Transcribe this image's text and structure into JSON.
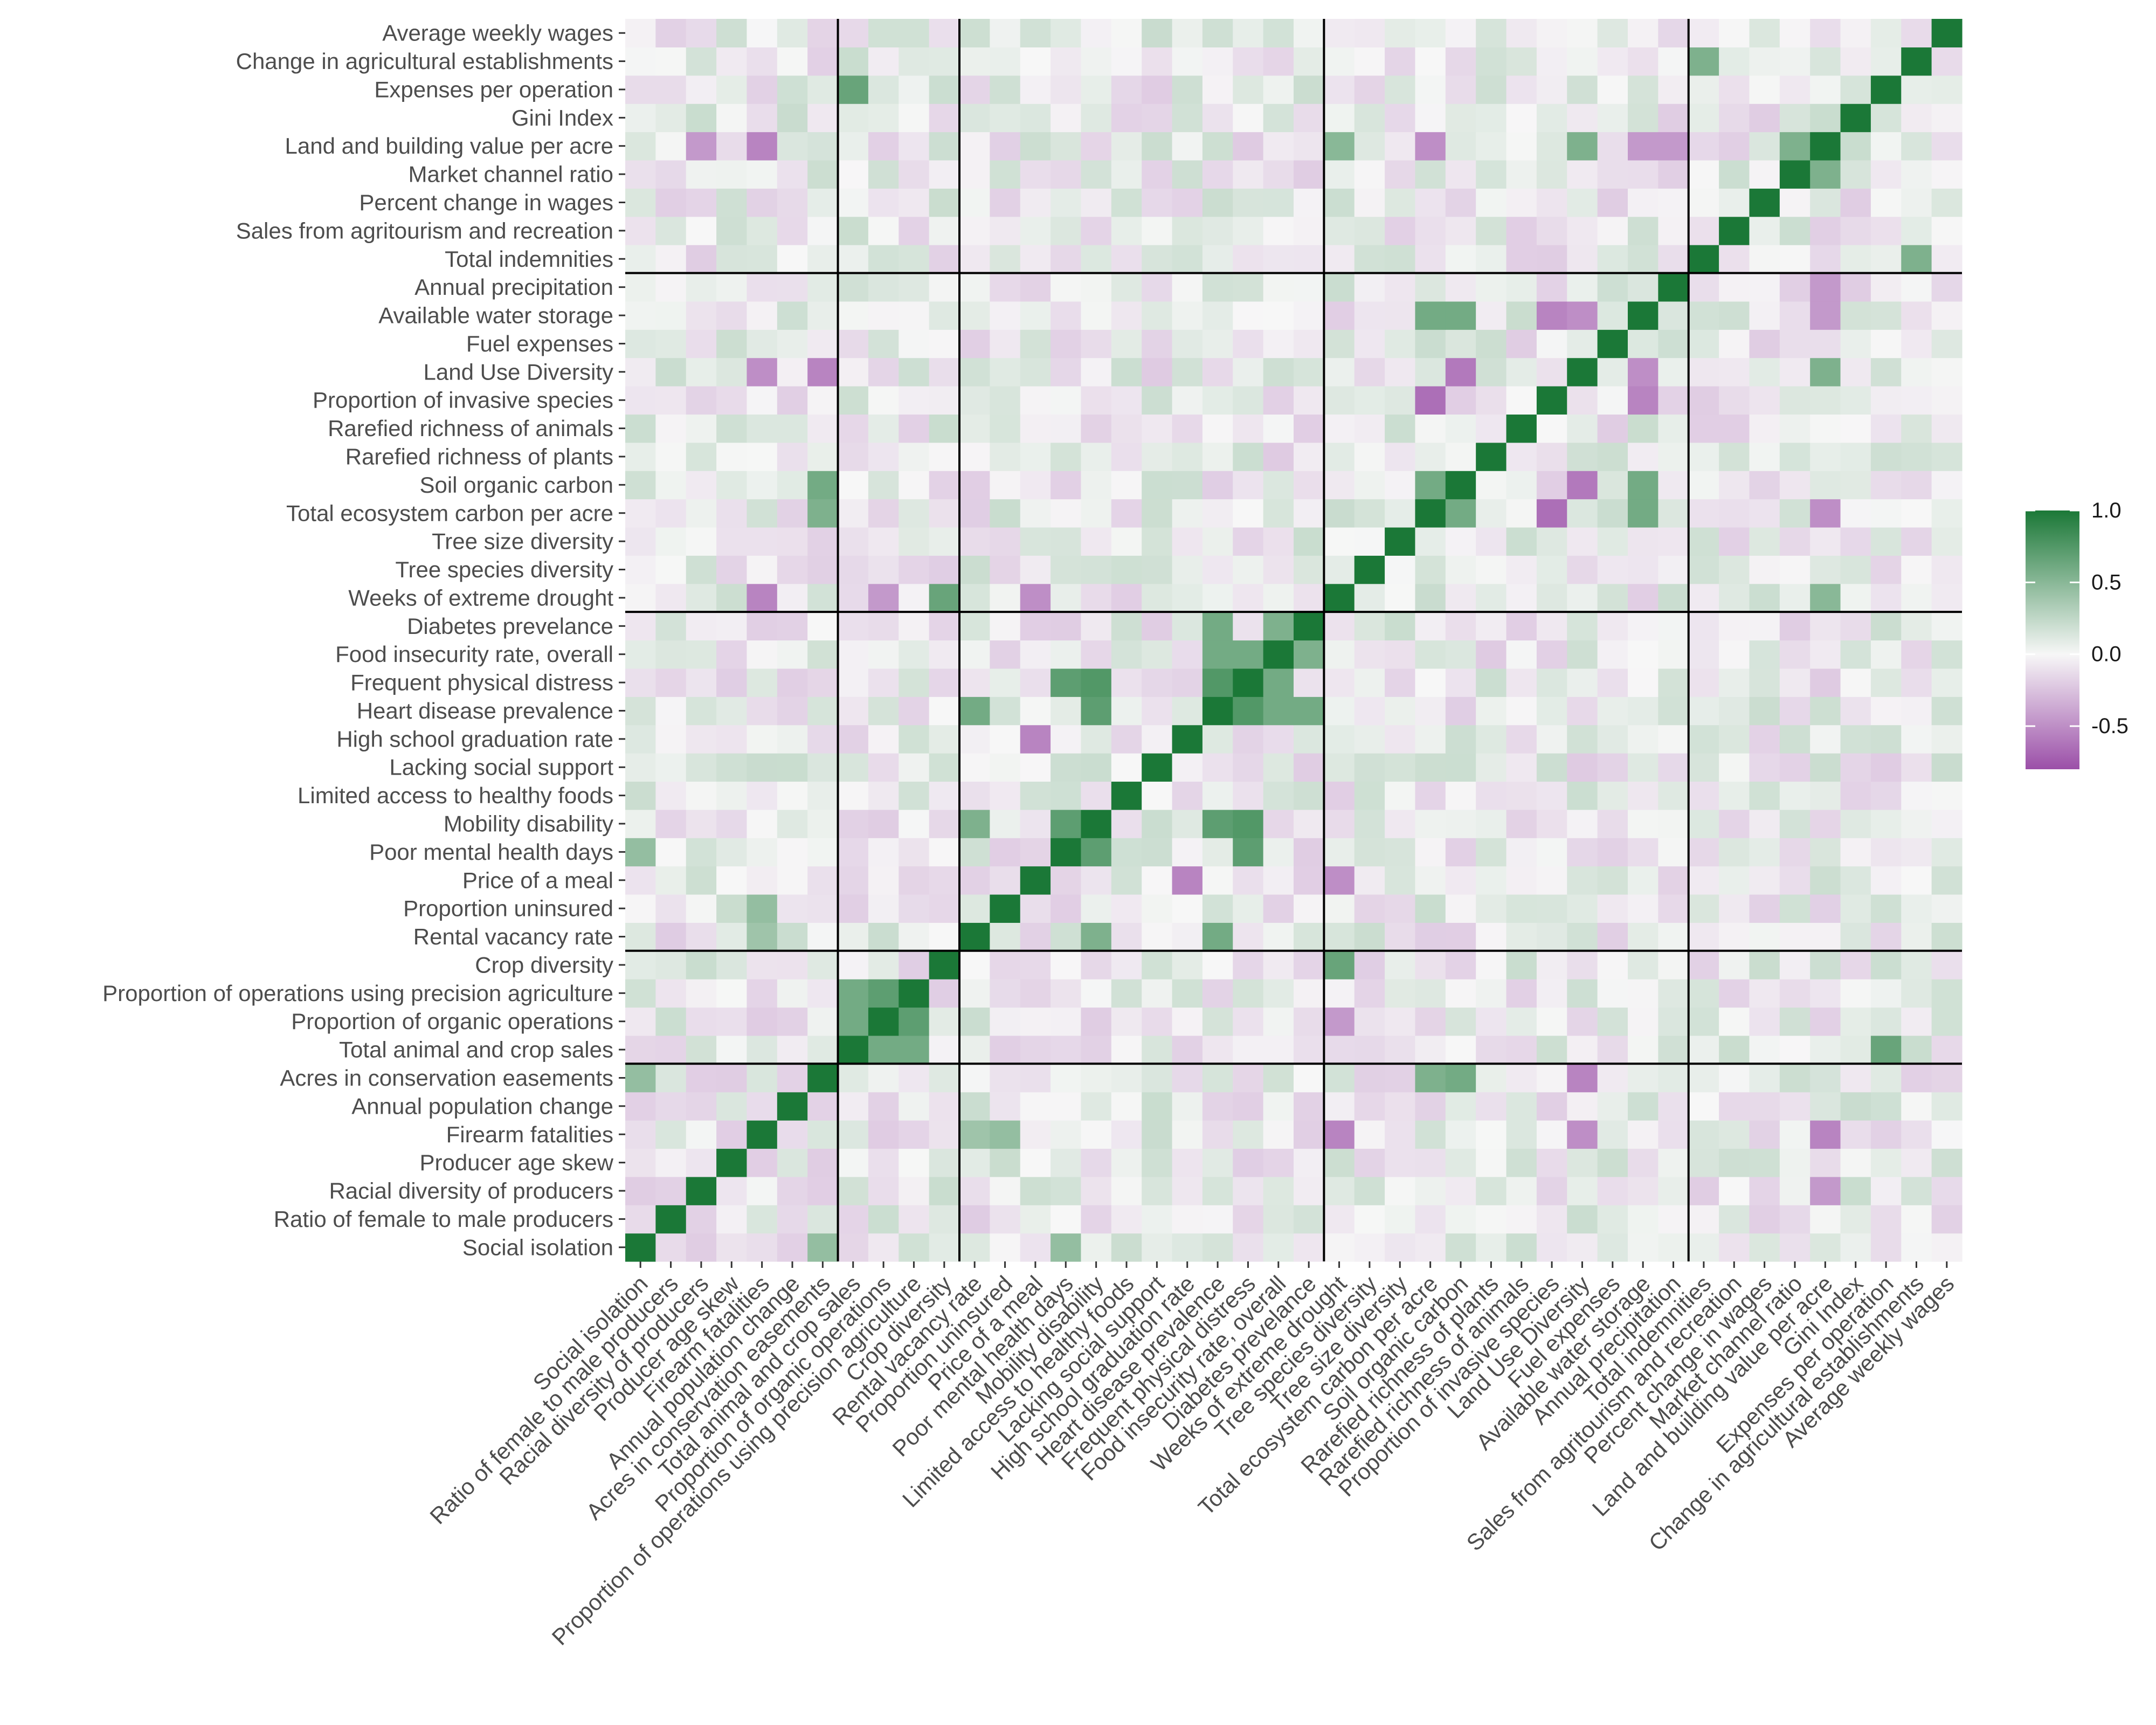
{
  "chart_data": {
    "type": "heatmap",
    "title": "",
    "xlabel": "",
    "ylabel": "",
    "variables": [
      "Social isolation",
      "Ratio of female to male producers",
      "Racial diversity of producers",
      "Producer age skew",
      "Firearm fatalities",
      "Annual population change",
      "Acres in conservation easements",
      "Total animal and crop sales",
      "Proportion of organic operations",
      "Proportion of operations using precision agriculture",
      "Crop diversity",
      "Rental vacancy rate",
      "Proportion uninsured",
      "Price of a meal",
      "Poor mental health days",
      "Mobility disability",
      "Limited access to healthy foods",
      "Lacking social support",
      "High school graduation rate",
      "Heart disease prevalence",
      "Frequent physical distress",
      "Food insecurity rate, overall",
      "Diabetes prevelance",
      "Weeks of extreme drought",
      "Tree species diversity",
      "Tree size diversity",
      "Total ecosystem carbon per acre",
      "Soil organic carbon",
      "Rarefied richness of plants",
      "Rarefied richness of animals",
      "Proportion of invasive species",
      "Land Use Diversity",
      "Fuel expenses",
      "Available water storage",
      "Annual precipitation",
      "Total indemnities",
      "Sales from agritourism and recreation",
      "Percent change in wages",
      "Market channel ratio",
      "Land and building value per acre",
      "Gini Index",
      "Expenses per operation",
      "Change in agricultural establishments",
      "Average weekly wages"
    ],
    "group_sizes": [
      7,
      4,
      12,
      12,
      9
    ],
    "legend": {
      "position": "right",
      "ticks": [
        "1.0",
        "0.5",
        "0.0",
        "-0.5"
      ],
      "tick_values": [
        1.0,
        0.5,
        0.0,
        -0.5
      ],
      "min": -0.8,
      "max": 1.0
    },
    "colors": {
      "low": "#9b4fa8",
      "mid": "#f7f7f7",
      "high": "#1b7837"
    },
    "grid": false,
    "highlighted_pairs": [
      {
        "a": "Total animal and crop sales",
        "b": "Proportion of operations using precision agriculture",
        "r": 0.6
      },
      {
        "a": "Total animal and crop sales",
        "b": "Proportion of organic operations",
        "r": 0.6
      },
      {
        "a": "Proportion of organic operations",
        "b": "Proportion of operations using precision agriculture",
        "r": 0.7
      },
      {
        "a": "Crop diversity",
        "b": "Weeks of extreme drought",
        "r": 0.65
      },
      {
        "a": "Acres in conservation easements",
        "b": "Social isolation",
        "r": 0.45
      },
      {
        "a": "Acres in conservation easements",
        "b": "Soil organic carbon",
        "r": 0.6
      },
      {
        "a": "Acres in conservation easements",
        "b": "Total ecosystem carbon per acre",
        "r": 0.55
      },
      {
        "a": "Land Use Diversity",
        "b": "Acres in conservation easements",
        "r": -0.55
      },
      {
        "a": "Land Use Diversity",
        "b": "Land and building value per acre",
        "r": 0.55
      },
      {
        "a": "Land Use Diversity",
        "b": "Soil organic carbon",
        "r": -0.6
      },
      {
        "a": "Land Use Diversity",
        "b": "Available water storage",
        "r": -0.5
      },
      {
        "a": "Weeks of extreme drought",
        "b": "Firearm fatalities",
        "r": -0.55
      },
      {
        "a": "Weeks of extreme drought",
        "b": "Land and building value per acre",
        "r": 0.5
      },
      {
        "a": "Available water storage",
        "b": "Soil organic carbon",
        "r": 0.6
      },
      {
        "a": "Available water storage",
        "b": "Total ecosystem carbon per acre",
        "r": 0.6
      },
      {
        "a": "Total ecosystem carbon per acre",
        "b": "Soil organic carbon",
        "r": 0.6
      },
      {
        "a": "Total ecosystem carbon per acre",
        "b": "Proportion of invasive species",
        "r": -0.65
      },
      {
        "a": "Available water storage",
        "b": "Proportion of invasive species",
        "r": -0.55
      },
      {
        "a": "Heart disease prevalence",
        "b": "Frequent physical distress",
        "r": 0.75
      },
      {
        "a": "Heart disease prevalence",
        "b": "Mobility disability",
        "r": 0.7
      },
      {
        "a": "Frequent physical distress",
        "b": "Mobility disability",
        "r": 0.75
      },
      {
        "a": "Frequent physical distress",
        "b": "Poor mental health days",
        "r": 0.7
      },
      {
        "a": "Food insecurity rate, overall",
        "b": "Frequent physical distress",
        "r": 0.6
      },
      {
        "a": "Food insecurity rate, overall",
        "b": "Heart disease prevalence",
        "r": 0.6
      },
      {
        "a": "Mobility disability",
        "b": "Poor mental health days",
        "r": 0.7
      },
      {
        "a": "Diabetes prevelance",
        "b": "Heart disease prevalence",
        "r": 0.6
      },
      {
        "a": "Diabetes prevelance",
        "b": "Food insecurity rate, overall",
        "r": 0.55
      },
      {
        "a": "High school graduation rate",
        "b": "Price of a meal",
        "r": -0.55
      },
      {
        "a": "Rental vacancy rate",
        "b": "Heart disease prevalence",
        "r": 0.6
      },
      {
        "a": "Rental vacancy rate",
        "b": "Mobility disability",
        "r": 0.55
      },
      {
        "a": "Weeks of extreme drought",
        "b": "Price of a meal",
        "r": -0.5
      },
      {
        "a": "Weeks of extreme drought",
        "b": "Proportion of organic operations",
        "r": -0.45
      },
      {
        "a": "Land and building value per acre",
        "b": "Firearm fatalities",
        "r": -0.55
      },
      {
        "a": "Land and building value per acre",
        "b": "Total ecosystem carbon per acre",
        "r": -0.5
      },
      {
        "a": "Land and building value per acre",
        "b": "Available water storage",
        "r": -0.45
      },
      {
        "a": "Land and building value per acre",
        "b": "Annual precipitation",
        "r": -0.45
      },
      {
        "a": "Land and building value per acre",
        "b": "Market channel ratio",
        "r": 0.55
      },
      {
        "a": "Total indemnities",
        "b": "Change in agricultural establishments",
        "r": 0.55
      },
      {
        "a": "Total animal and crop sales",
        "b": "Expenses per operation",
        "r": 0.65
      },
      {
        "a": "Firearm fatalities",
        "b": "Land Use Diversity",
        "r": -0.5
      },
      {
        "a": "Racial diversity of producers",
        "b": "Land and building value per acre",
        "r": -0.45
      },
      {
        "a": "Poor mental health days",
        "b": "Social isolation",
        "r": 0.45
      },
      {
        "a": "Proportion uninsured",
        "b": "Firearm fatalities",
        "r": 0.45
      },
      {
        "a": "Rental vacancy rate",
        "b": "Firearm fatalities",
        "r": 0.4
      }
    ]
  }
}
